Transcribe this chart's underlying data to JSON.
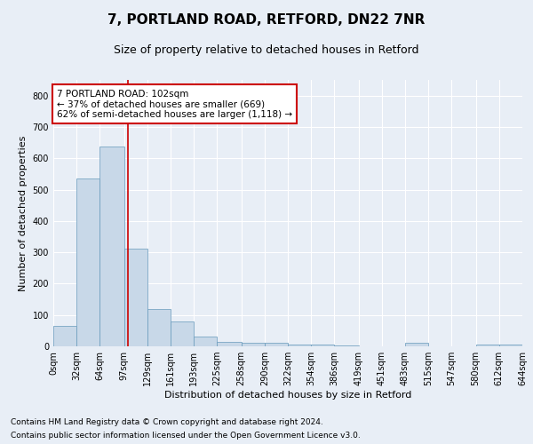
{
  "title1": "7, PORTLAND ROAD, RETFORD, DN22 7NR",
  "title2": "Size of property relative to detached houses in Retford",
  "xlabel": "Distribution of detached houses by size in Retford",
  "ylabel": "Number of detached properties",
  "footer1": "Contains HM Land Registry data © Crown copyright and database right 2024.",
  "footer2": "Contains public sector information licensed under the Open Government Licence v3.0.",
  "annotation_title": "7 PORTLAND ROAD: 102sqm",
  "annotation_line1": "← 37% of detached houses are smaller (669)",
  "annotation_line2": "62% of semi-detached houses are larger (1,118) →",
  "bar_color": "#c8d8e8",
  "bar_edge_color": "#6699bb",
  "red_line_x": 102,
  "bin_edges": [
    0,
    32,
    64,
    97,
    129,
    161,
    193,
    225,
    258,
    290,
    322,
    354,
    386,
    419,
    451,
    483,
    515,
    547,
    580,
    612,
    644
  ],
  "bar_heights": [
    65,
    535,
    637,
    312,
    120,
    78,
    30,
    14,
    10,
    10,
    5,
    5,
    2,
    0,
    0,
    10,
    0,
    0,
    5,
    5
  ],
  "tick_labels": [
    "0sqm",
    "32sqm",
    "64sqm",
    "97sqm",
    "129sqm",
    "161sqm",
    "193sqm",
    "225sqm",
    "258sqm",
    "290sqm",
    "322sqm",
    "354sqm",
    "386sqm",
    "419sqm",
    "451sqm",
    "483sqm",
    "515sqm",
    "547sqm",
    "580sqm",
    "612sqm",
    "644sqm"
  ],
  "ylim": [
    0,
    850
  ],
  "yticks": [
    0,
    100,
    200,
    300,
    400,
    500,
    600,
    700,
    800
  ],
  "background_color": "#e8eef6",
  "plot_bg_color": "#e8eef6",
  "grid_color": "#ffffff",
  "annotation_box_color": "#ffffff",
  "annotation_box_edge": "#cc0000",
  "red_line_color": "#cc0000",
  "title1_fontsize": 11,
  "title2_fontsize": 9,
  "axis_label_fontsize": 8,
  "tick_fontsize": 7,
  "annotation_fontsize": 7.5,
  "footer_fontsize": 6.5
}
